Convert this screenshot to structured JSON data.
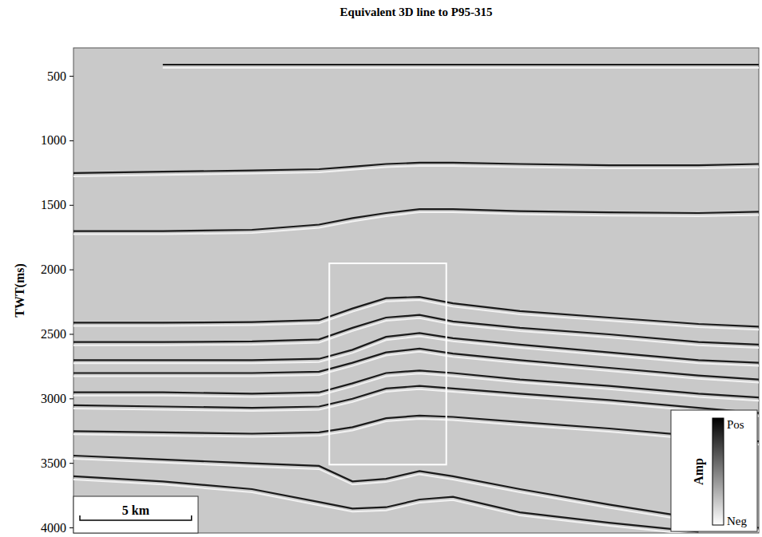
{
  "chart_data": {
    "type": "seismic",
    "title": "Equivalent 3D line to P95-315",
    "y_label": "TWT(ms)",
    "ylim": [
      280,
      4040
    ],
    "yticks": [
      500,
      1000,
      1500,
      2000,
      2500,
      3000,
      3500,
      4000
    ],
    "xlim": [
      0,
      30.7
    ],
    "tick_labels": "y",
    "color": "#1a1a1a",
    "x": [
      0,
      4,
      8,
      11,
      12.5,
      14,
      15.5,
      17,
      20,
      24,
      28,
      30.7
    ],
    "series": [
      {
        "values": [
          null,
          410,
          410,
          410,
          410,
          410,
          410,
          410,
          410,
          410,
          410,
          410
        ]
      },
      {
        "values": [
          1250,
          1240,
          1230,
          1220,
          1200,
          1180,
          1170,
          1170,
          1180,
          1190,
          1190,
          1180
        ]
      },
      {
        "values": [
          1700,
          1700,
          1690,
          1650,
          1600,
          1560,
          1530,
          1530,
          1545,
          1555,
          1560,
          1550
        ]
      },
      {
        "values": [
          2410,
          2410,
          2405,
          2390,
          2300,
          2220,
          2210,
          2260,
          2320,
          2370,
          2420,
          2440
        ]
      },
      {
        "values": [
          2560,
          2560,
          2555,
          2540,
          2450,
          2370,
          2350,
          2400,
          2450,
          2500,
          2560,
          2580
        ]
      },
      {
        "values": [
          2700,
          2700,
          2700,
          2690,
          2620,
          2520,
          2490,
          2530,
          2580,
          2640,
          2700,
          2720
        ]
      },
      {
        "values": [
          2800,
          2800,
          2800,
          2790,
          2720,
          2640,
          2610,
          2650,
          2700,
          2760,
          2820,
          2850
        ]
      },
      {
        "values": [
          2950,
          2950,
          2960,
          2950,
          2880,
          2800,
          2780,
          2800,
          2850,
          2900,
          2960,
          2990
        ]
      },
      {
        "values": [
          3050,
          3060,
          3070,
          3060,
          3000,
          2920,
          2900,
          2920,
          2960,
          3010,
          3070,
          3110
        ]
      },
      {
        "values": [
          3250,
          3260,
          3270,
          3260,
          3220,
          3150,
          3130,
          3140,
          3180,
          3230,
          3290,
          3330
        ]
      },
      {
        "values": [
          3440,
          3470,
          3500,
          3520,
          3640,
          3620,
          3560,
          3600,
          3700,
          3820,
          3930,
          4000
        ]
      },
      {
        "values": [
          3600,
          3640,
          3700,
          3800,
          3850,
          3840,
          3780,
          3760,
          3880,
          3960,
          4030,
          null
        ]
      }
    ],
    "highlight_box": {
      "x": [
        11.46,
        16.7
      ],
      "y": [
        1950,
        3510
      ]
    },
    "scale_bar": {
      "label": "5 km",
      "length": 5
    },
    "colorbar": {
      "label": "Amp",
      "labels": [
        "Pos",
        "Neg"
      ]
    }
  }
}
